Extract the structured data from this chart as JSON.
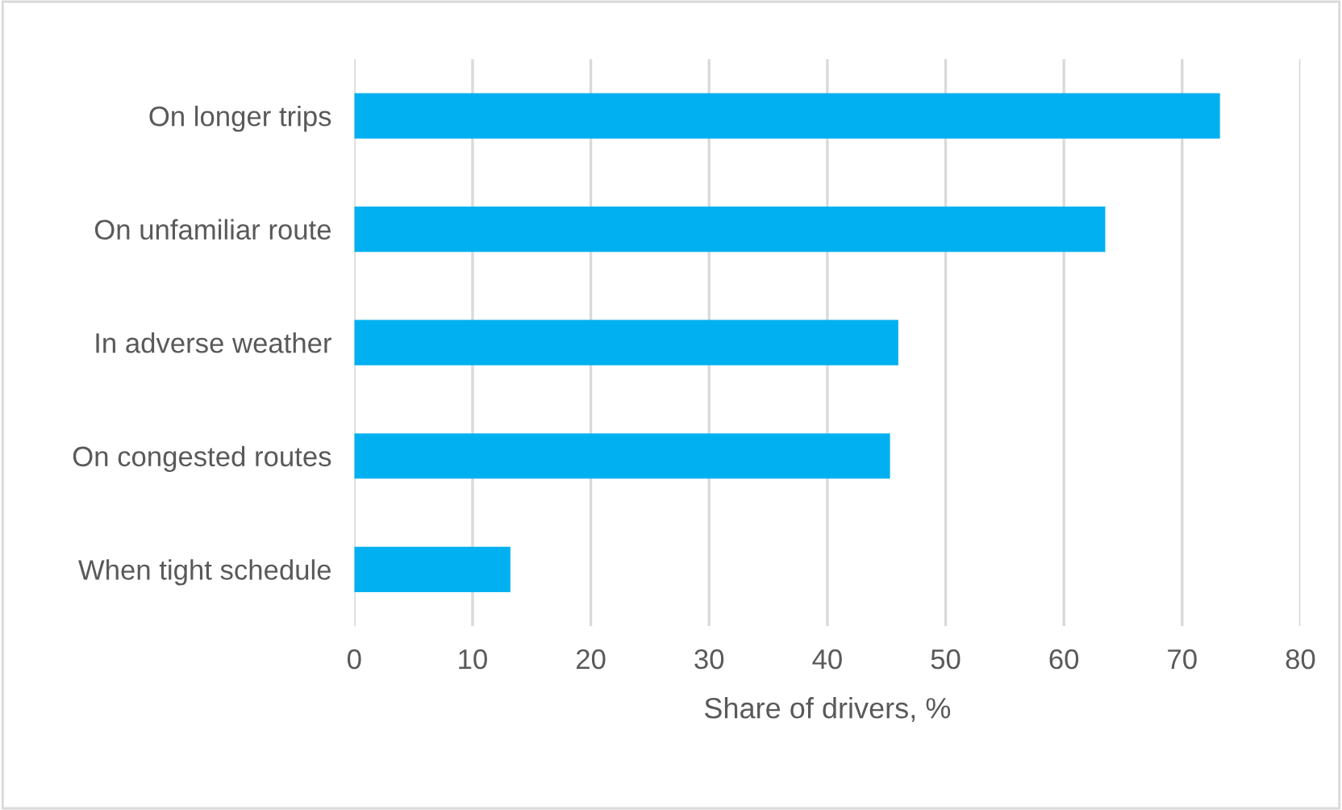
{
  "chart_data": {
    "type": "bar",
    "orientation": "horizontal",
    "xlabel": "Share of drivers, %",
    "categories": [
      "On longer trips",
      "On unfamiliar route",
      "In adverse weather",
      "On congested routes",
      "When tight schedule"
    ],
    "values": [
      73.2,
      63.5,
      46.0,
      45.3,
      13.2
    ],
    "color": "#00b0f0",
    "xlim": [
      0,
      80
    ],
    "xticks": [
      0,
      10,
      20,
      30,
      40,
      50,
      60,
      70,
      80
    ],
    "grid": "x"
  }
}
